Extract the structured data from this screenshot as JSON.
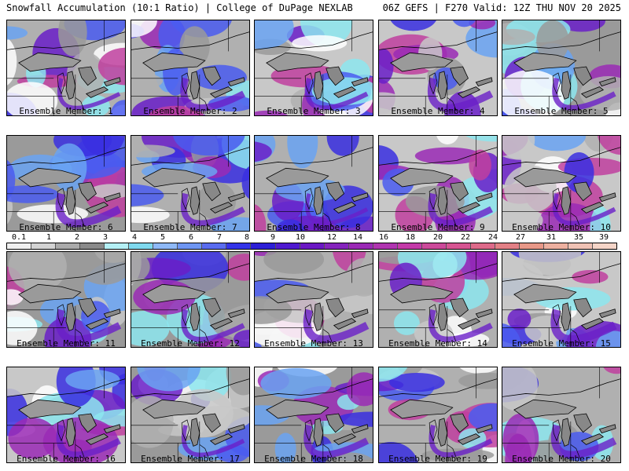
{
  "header": {
    "left": "Snowfall Accumulation (10:1 Ratio) | College of DuPage NEXLAB",
    "right": "06Z GEFS | F270 Valid: 12Z THU NOV 20 2025"
  },
  "members": [
    "Ensemble Member: 1",
    "Ensemble Member: 2",
    "Ensemble Member: 3",
    "Ensemble Member: 4",
    "Ensemble Member: 5",
    "Ensemble Member: 6",
    "Ensemble Member: 7",
    "Ensemble Member: 8",
    "Ensemble Member: 9",
    "Ensemble Member: 10",
    "Ensemble Member: 11",
    "Ensemble Member: 12",
    "Ensemble Member: 13",
    "Ensemble Member: 14",
    "Ensemble Member: 15",
    "Ensemble Member: 16",
    "Ensemble Member: 17",
    "Ensemble Member: 18",
    "Ensemble Member: 19",
    "Ensemble Member: 20"
  ],
  "colorbar": {
    "labels": [
      "0.1",
      "1",
      "2",
      "3",
      "4",
      "5",
      "6",
      "7",
      "8",
      "9",
      "10",
      "12",
      "14",
      "16",
      "18",
      "20",
      "22",
      "24",
      "27",
      "31",
      "35",
      "39"
    ],
    "colors": [
      "#f0f0f0",
      "#d3d3d3",
      "#aaaaaa",
      "#8a8a8a",
      "#b4f0f5",
      "#7fd9ee",
      "#8fb9f7",
      "#6f96f2",
      "#5a6cef",
      "#3434e8",
      "#2d1fd6",
      "#4f1ad0",
      "#6b18c4",
      "#8524bd",
      "#9b2ab6",
      "#b035b0",
      "#c43aa8",
      "#cc4a9a",
      "#d75592",
      "#de6a8a",
      "#e38086",
      "#e89888",
      "#edb0a0",
      "#f0c2b5",
      "#f5d5c8"
    ]
  }
}
